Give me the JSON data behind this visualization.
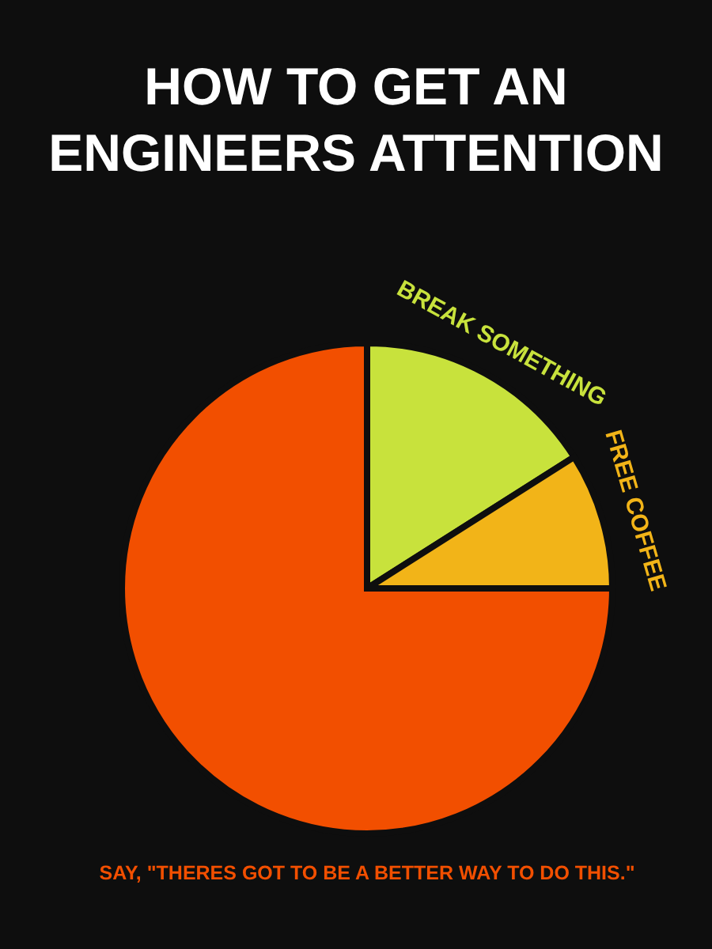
{
  "chart_data": {
    "type": "pie",
    "title": "HOW TO GET AN\nENGINEERS ATTENTION",
    "categories": [
      "BREAK SOMETHING",
      "FREE COFFEE",
      "SAY, \"THERES GOT TO BE A BETTER WAY TO DO THIS.\""
    ],
    "values": [
      16,
      9,
      75
    ],
    "colors": [
      "#c8e23c",
      "#f2b418",
      "#f24f00"
    ]
  }
}
